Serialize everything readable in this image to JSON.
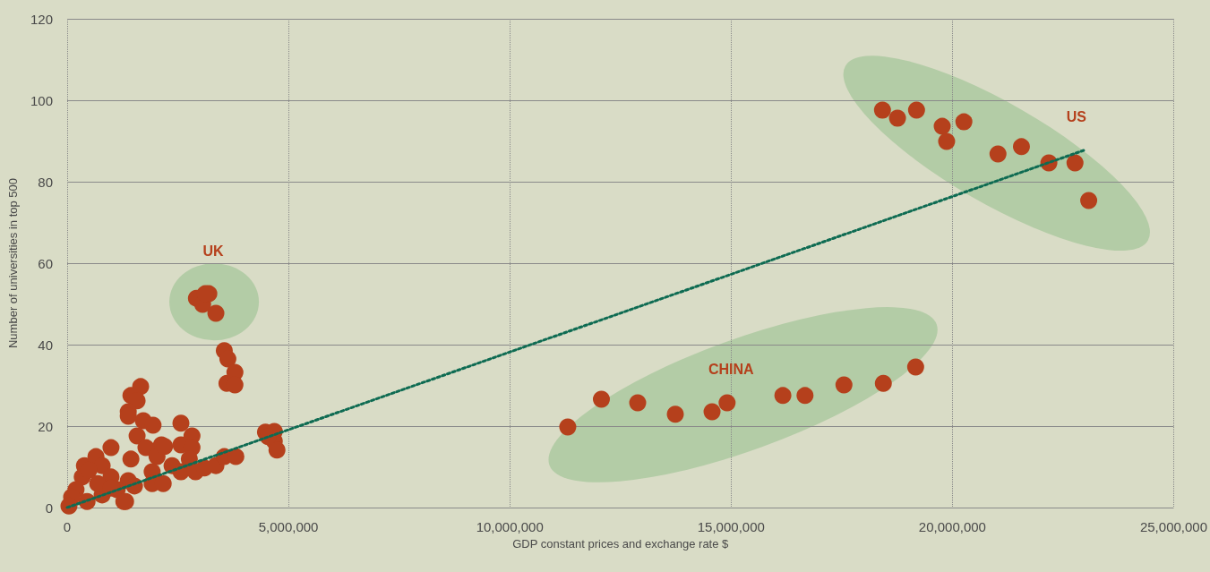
{
  "chart_data": {
    "type": "scatter",
    "xlabel": "GDP constant prices and exchange rate $",
    "ylabel": "Number of universities in top 500",
    "xlim": [
      0,
      25000000
    ],
    "xticks": [
      0,
      {
        "value": 5000000,
        "label": "5,000,000"
      },
      {
        "value": 10000000,
        "label": "10,000,000"
      },
      {
        "value": 15000000,
        "label": "15,000,000"
      },
      {
        "value": 20000000,
        "label": "20,000,000"
      },
      {
        "value": 25000000,
        "label": "25,000,000"
      }
    ],
    "ylim": [
      0,
      120
    ],
    "yticks": [
      0,
      20,
      40,
      60,
      80,
      100,
      120
    ],
    "grid": true,
    "marker": "circle",
    "series": [
      {
        "color": "#b5401c",
        "x": [
          18420000,
          18760000,
          19190000,
          19770000,
          19870000,
          20260000,
          21030000,
          21560000,
          22180000,
          22770000,
          23080000,
          11310000,
          12070000,
          12890000,
          13740000,
          14570000,
          14910000,
          16170000,
          16670000,
          17550000,
          18440000,
          19170000,
          2920000,
          3060000,
          3200000,
          3360000,
          3120000,
          3550000,
          3630000,
          3610000,
          3790000,
          3790000,
          1660000,
          1440000,
          1580000,
          1380000,
          1380000,
          1720000,
          1940000,
          2130000,
          1580000,
          1780000,
          1440000,
          2030000,
          990000,
          650000,
          390000,
          340000,
          790000,
          990000,
          1380000,
          200000,
          450000,
          790000,
          1320000,
          1130000,
          1520000,
          2570000,
          2820000,
          2570000,
          2820000,
          2760000,
          1920000,
          1920000,
          2170000,
          2370000,
          2570000,
          2900000,
          3100000,
          3360000,
          3550000,
          3810000,
          4480000,
          4680000,
          4680000,
          4740000,
          4540000,
          2200000,
          100000,
          40000,
          490000,
          690000,
          990000,
          1280000
        ],
        "values": [
          97.6,
          95.6,
          97.6,
          93.6,
          89.9,
          94.7,
          86.8,
          88.6,
          84.6,
          84.6,
          75.4,
          19.8,
          26.6,
          25.7,
          22.9,
          23.5,
          25.7,
          27.5,
          27.5,
          30.1,
          30.5,
          34.5,
          51.4,
          49.9,
          52.5,
          47.7,
          52.5,
          38.5,
          36.5,
          30.5,
          33.2,
          30.1,
          29.7,
          27.5,
          26.2,
          23.5,
          22.4,
          21.3,
          20.2,
          15.4,
          17.6,
          14.7,
          11.9,
          12.5,
          14.7,
          12.5,
          10.3,
          7.5,
          10.3,
          7.5,
          6.6,
          4.4,
          1.5,
          3.1,
          1.5,
          4.4,
          5.3,
          20.7,
          17.6,
          15.4,
          14.7,
          11.9,
          8.8,
          5.9,
          5.9,
          10.3,
          8.8,
          8.8,
          9.7,
          10.3,
          12.5,
          12.5,
          18.5,
          18.7,
          16.3,
          14.1,
          17.4,
          15,
          2.6,
          0.4,
          9.2,
          5.9,
          4.8,
          1.5
        ]
      },
      {
        "type": "line",
        "color": "#0e6b52",
        "line_style": "dotted",
        "marker": "none",
        "x": [
          0,
          23020000
        ],
        "values": [
          0,
          87.9
        ]
      }
    ],
    "annotations": [
      "UK",
      "CHINA",
      "US"
    ]
  }
}
